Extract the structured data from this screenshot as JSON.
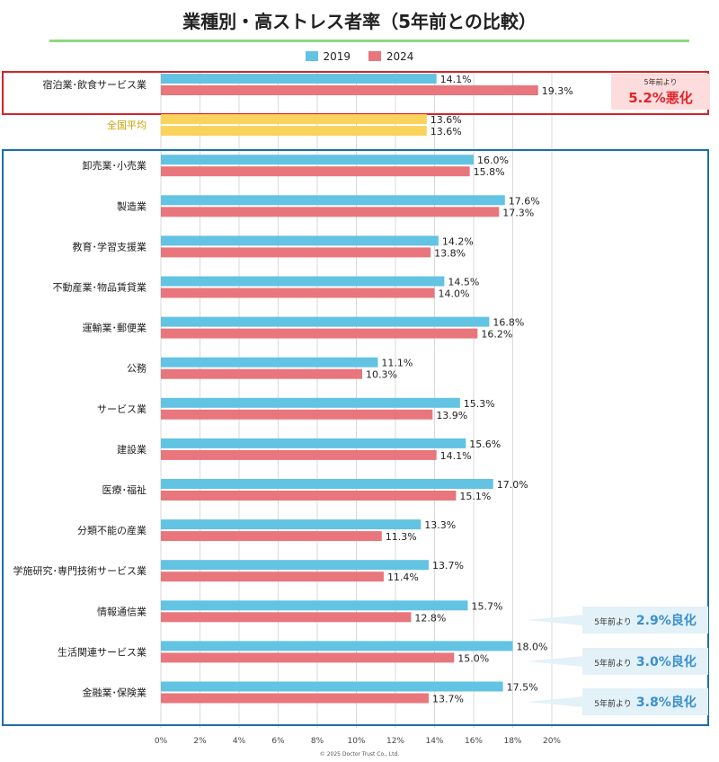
{
  "title": "業種別・高ストレス者率（5年前との比較）",
  "copyright": "© 2025 Doctor Trust Co., Ltd.",
  "colors": {
    "s2019": "#62c3e3",
    "s2024": "#e8767c",
    "avg": "#fad35d",
    "red_box": "#d5232a",
    "blue_box": "#1c6fa8",
    "grid": "#d9d9d9"
  },
  "chart_data": {
    "type": "bar",
    "orientation": "horizontal",
    "title": "業種別・高ストレス者率（5年前との比較）",
    "legend": [
      "2019",
      "2024"
    ],
    "xlim": [
      0,
      20
    ],
    "xticks": [
      "0%",
      "2%",
      "4%",
      "6%",
      "8%",
      "10%",
      "12%",
      "14%",
      "16%",
      "18%",
      "20%"
    ],
    "xtick_values": [
      0,
      2,
      4,
      6,
      8,
      10,
      12,
      14,
      16,
      18,
      20
    ],
    "categories": [
      "宿泊業･飲食サービス業",
      "全国平均",
      "卸売業･小売業",
      "製造業",
      "教育･学習支援業",
      "不動産業･物品賃貸業",
      "運輸業･郵便業",
      "公務",
      "サービス業",
      "建設業",
      "医療･福祉",
      "分類不能の産業",
      "学施研究･専門技術サービス業",
      "情報通信業",
      "生活関連サービス業",
      "金融業･保険業"
    ],
    "series": [
      {
        "name": "2019",
        "values": [
          14.1,
          13.6,
          16.0,
          17.6,
          14.2,
          14.5,
          16.8,
          11.1,
          15.3,
          15.6,
          17.0,
          13.3,
          13.7,
          15.7,
          18.0,
          17.5
        ],
        "labels": [
          "14.1%",
          "13.6%",
          "16.0%",
          "17.6%",
          "14.2%",
          "14.5%",
          "16.8%",
          "11.1%",
          "15.3%",
          "15.6%",
          "17.0%",
          "13.3%",
          "13.7%",
          "15.7%",
          "18.0%",
          "17.5%"
        ]
      },
      {
        "name": "2024",
        "values": [
          19.3,
          13.6,
          15.8,
          17.3,
          13.8,
          14.0,
          16.2,
          10.3,
          13.9,
          14.1,
          15.1,
          11.3,
          11.4,
          12.8,
          15.0,
          13.7
        ],
        "labels": [
          "19.3%",
          "13.6%",
          "15.8%",
          "17.3%",
          "13.8%",
          "14.0%",
          "16.2%",
          "10.3%",
          "13.9%",
          "14.1%",
          "15.1%",
          "11.3%",
          "11.4%",
          "12.8%",
          "15.0%",
          "13.7%"
        ]
      }
    ]
  },
  "annotations": {
    "worse": {
      "small": "5年前より",
      "big": "5.2%悪化"
    },
    "better": [
      {
        "small": "5年前より",
        "big": "2.9%良化"
      },
      {
        "small": "5年前より",
        "big": "3.0%良化"
      },
      {
        "small": "5年前より",
        "big": "3.8%良化"
      }
    ]
  }
}
